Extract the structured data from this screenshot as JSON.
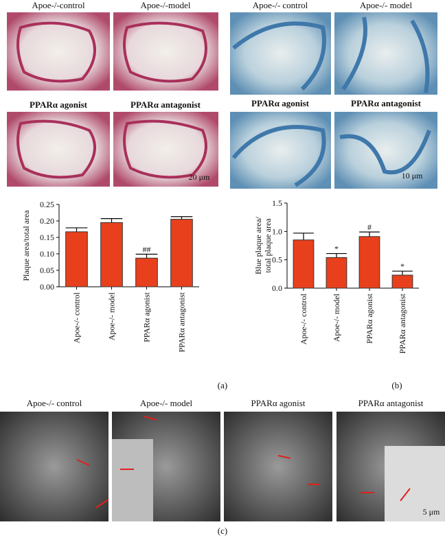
{
  "panels": {
    "a": {
      "label": "(a)",
      "images": [
        "Apoe-/-control",
        "Apoe-/-model",
        "PPARα agonist",
        "PPARα antagonist"
      ],
      "scale_bar": "20 μm"
    },
    "b": {
      "label": "(b)",
      "images": [
        "Apoe-/- control",
        "Apoe-/- model",
        "PPARα agonist",
        "PPARα antagonist"
      ],
      "scale_bar": "10 μm"
    },
    "c": {
      "label": "(c)",
      "images": [
        "Apoe-/- control",
        "Apoe-/- model",
        "PPARα agonist",
        "PPARα antagonist"
      ],
      "scale_bar": "5 μm"
    }
  },
  "chart_data": [
    {
      "type": "bar",
      "y_label": "Plaque area/total area",
      "categories": [
        "Apoe-/- control",
        "Apoe-/- model",
        "PPARα agonist",
        "PPARα antagonist"
      ],
      "values": [
        0.167,
        0.195,
        0.087,
        0.205
      ],
      "errors": [
        0.012,
        0.012,
        0.012,
        0.008
      ],
      "annotations": [
        null,
        null,
        "##",
        null
      ],
      "color": "#e8401c",
      "ylim": [
        0,
        0.25
      ],
      "yticks": [
        {
          "value": 0,
          "label": "0.00"
        },
        {
          "value": 0.05,
          "label": "0.05"
        },
        {
          "value": 0.1,
          "label": "0.10"
        },
        {
          "value": 0.15,
          "label": "0.15"
        },
        {
          "value": 0.2,
          "label": "0.20"
        },
        {
          "value": 0.25,
          "label": "0.25"
        }
      ]
    },
    {
      "type": "bar",
      "y_label": [
        "Blue plaque area/",
        "total plaque area"
      ],
      "categories": [
        "Apoe-/- control",
        "Apoe-/- model",
        "PPARα agonist",
        "PPARα antagonist"
      ],
      "values": [
        0.85,
        0.54,
        0.91,
        0.23
      ],
      "errors": [
        0.12,
        0.07,
        0.08,
        0.07
      ],
      "annotations": [
        null,
        "*",
        "#",
        "*"
      ],
      "color": "#e8401c",
      "ylim": [
        0,
        1.5
      ],
      "yticks": [
        {
          "value": 0,
          "label": "0.0"
        },
        {
          "value": 0.5,
          "label": "0.5"
        },
        {
          "value": 1,
          "label": "1.0"
        },
        {
          "value": 1.5,
          "label": "1.5"
        }
      ]
    }
  ]
}
